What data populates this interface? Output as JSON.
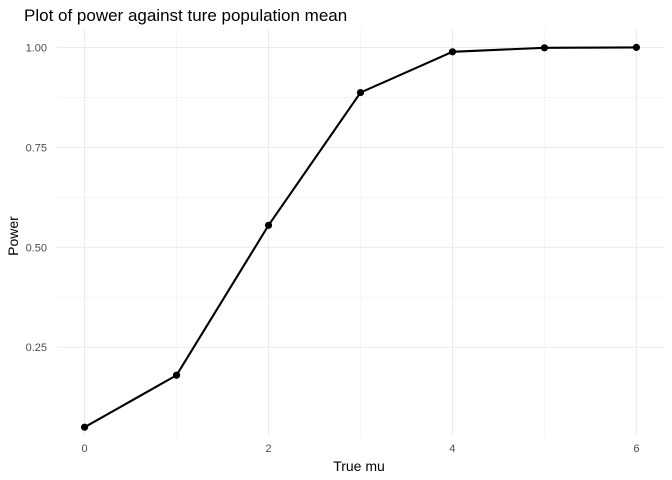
{
  "chart_data": {
    "type": "line",
    "title": "Plot of power against ture population mean",
    "xlabel": "True mu",
    "ylabel": "Power",
    "x": [
      0,
      1,
      2,
      3,
      4,
      5,
      6
    ],
    "y": [
      0.05,
      0.18,
      0.555,
      0.887,
      0.989,
      0.999,
      1.0
    ],
    "xlim": [
      -0.3,
      6.3
    ],
    "ylim": [
      0.028,
      1.046
    ],
    "x_ticks": [
      0,
      2,
      4,
      6
    ],
    "x_tick_labels": [
      "0",
      "2",
      "4",
      "6"
    ],
    "x_minor_ticks": [
      1,
      3,
      5
    ],
    "y_ticks": [
      0.25,
      0.5,
      0.75,
      1.0
    ],
    "y_tick_labels": [
      "0.25",
      "0.50",
      "0.75",
      "1.00"
    ],
    "y_minor_ticks": [
      0.375,
      0.625,
      0.875
    ],
    "grid": true,
    "legend": "none",
    "line_color": "#000000",
    "point_color": "#000000"
  }
}
